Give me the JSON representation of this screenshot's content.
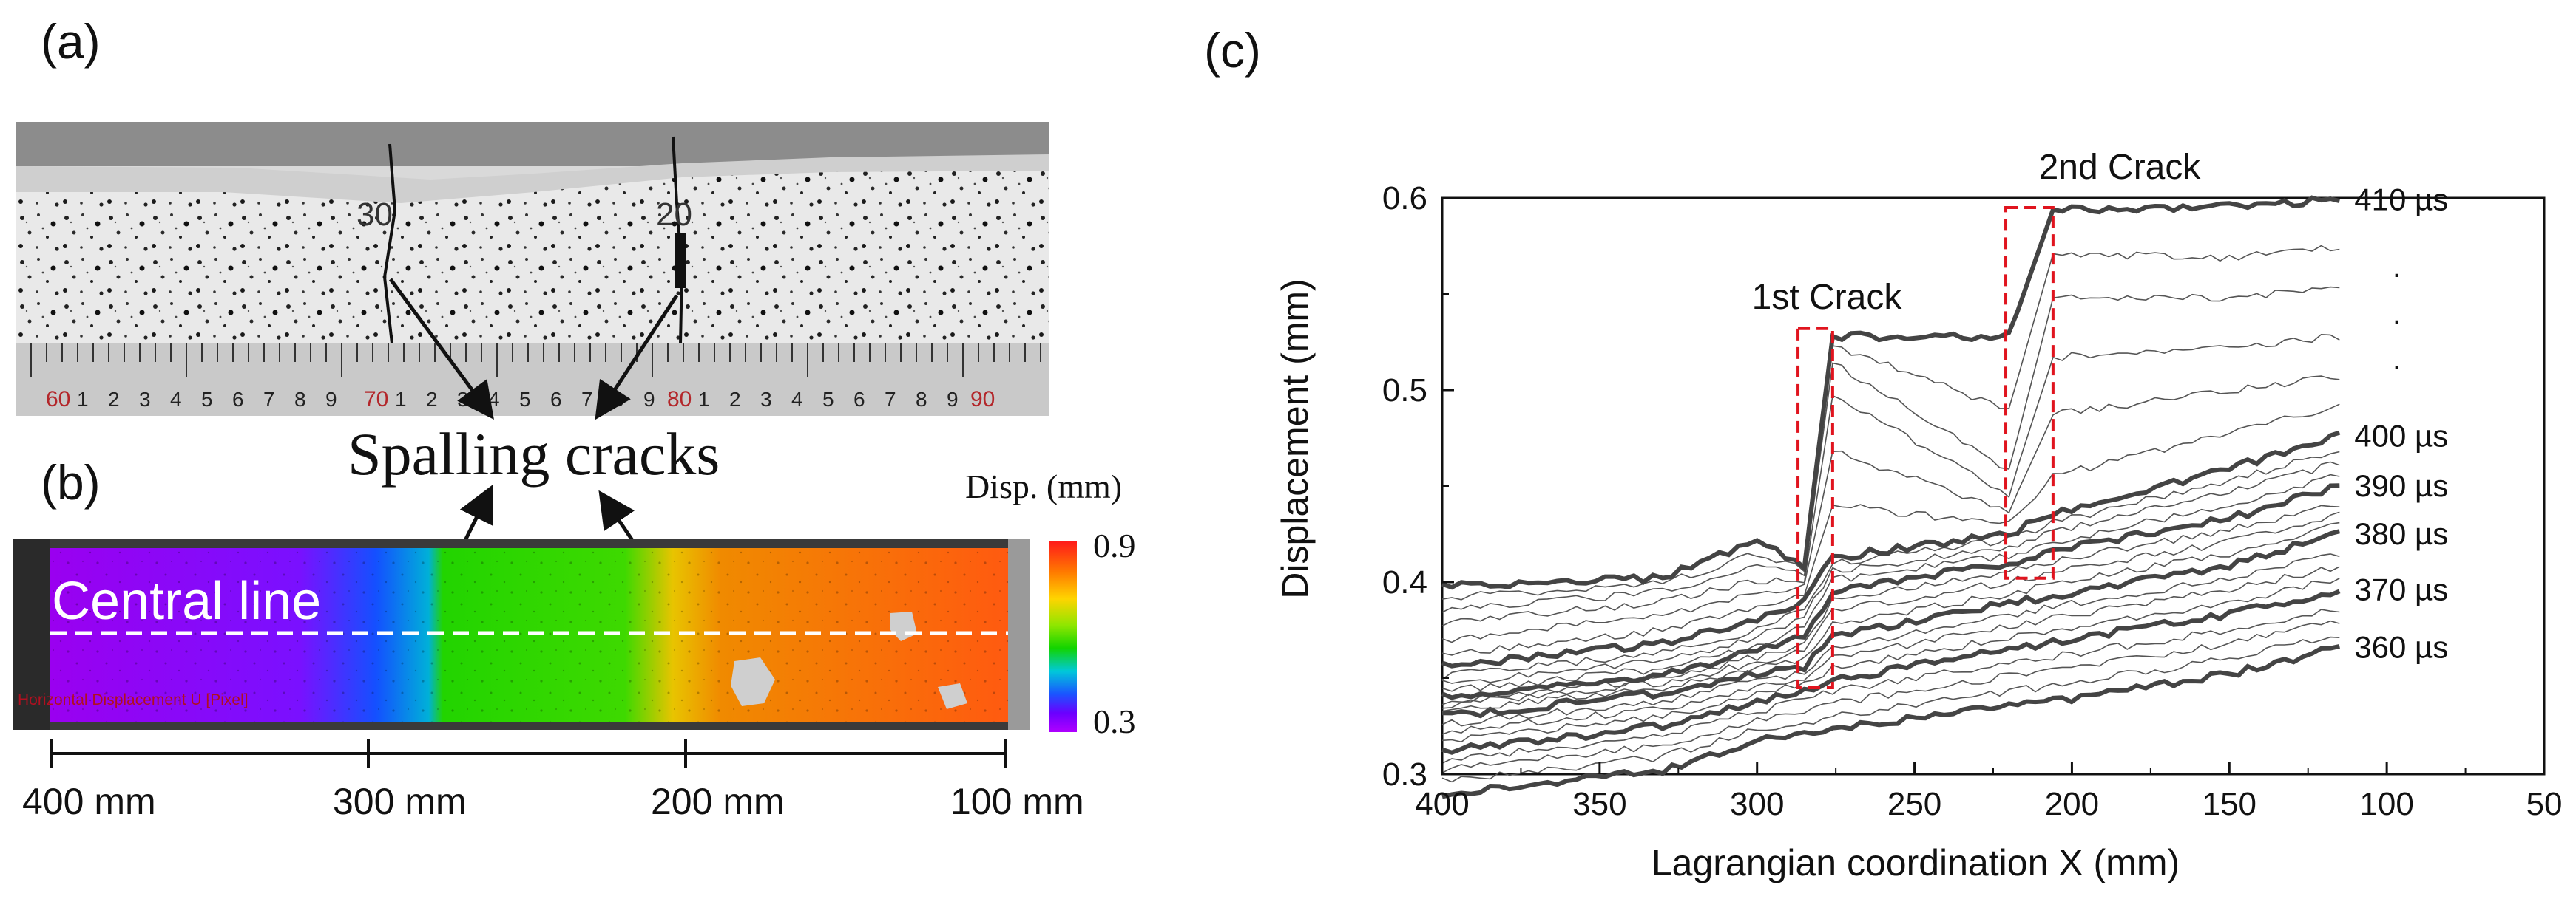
{
  "panel_labels": {
    "a": "(a)",
    "b": "(b)",
    "c": "(c)"
  },
  "panel_a": {
    "ruler_big": [
      "60",
      "70",
      "80",
      "90"
    ],
    "ruler_small": [
      "1",
      "2",
      "3",
      "4",
      "5",
      "6",
      "7",
      "8",
      "9"
    ],
    "specimen_marks": [
      "30",
      "20"
    ]
  },
  "annotation": {
    "spalling": "Spalling cracks"
  },
  "panel_b": {
    "central_line": "Central line",
    "overlay_caption": "Horizontal Displacement U [Pixel]",
    "colorbar_title": "Disp. (mm)",
    "colorbar_max": "0.9",
    "colorbar_min": "0.3",
    "colors": {
      "low": "#b000ff",
      "mid": "#12d400",
      "high": "#ff7a00"
    }
  },
  "scale_labels": [
    "400 mm",
    "300 mm",
    "200 mm",
    "100 mm"
  ],
  "chart_data": {
    "type": "line",
    "title": "",
    "xlabel": "Lagrangian coordination X (mm)",
    "ylabel": "Displacement (mm)",
    "xlim": [
      400,
      50
    ],
    "ylim": [
      0.3,
      0.6
    ],
    "xticks": [
      400,
      350,
      300,
      250,
      200,
      150,
      100,
      50
    ],
    "yticks": [
      0.3,
      0.4,
      0.5,
      0.6
    ],
    "annotations": [
      "1st Crack",
      "2nd Crack"
    ],
    "ellipsis": [
      ".",
      ".",
      "."
    ],
    "crack_boxes": [
      {
        "x": [
          287,
          276
        ],
        "y": [
          0.345,
          0.532
        ]
      },
      {
        "x": [
          221,
          206
        ],
        "y": [
          0.402,
          0.595
        ]
      }
    ],
    "series": [
      {
        "name": "360 µs",
        "bold": true,
        "points": [
          [
            400,
            0.29
          ],
          [
            330,
            0.302
          ],
          [
            300,
            0.318
          ],
          [
            285,
            0.321
          ],
          [
            276,
            0.324
          ],
          [
            220,
            0.335
          ],
          [
            206,
            0.338
          ],
          [
            150,
            0.352
          ],
          [
            115,
            0.366
          ]
        ]
      },
      {
        "name": "",
        "bold": false,
        "points": [
          [
            400,
            0.296
          ],
          [
            330,
            0.309
          ],
          [
            300,
            0.323
          ],
          [
            285,
            0.327
          ],
          [
            276,
            0.33
          ],
          [
            220,
            0.343
          ],
          [
            206,
            0.346
          ],
          [
            150,
            0.36
          ],
          [
            115,
            0.373
          ]
        ]
      },
      {
        "name": "",
        "bold": false,
        "points": [
          [
            400,
            0.302
          ],
          [
            330,
            0.315
          ],
          [
            300,
            0.328
          ],
          [
            285,
            0.333
          ],
          [
            276,
            0.337
          ],
          [
            220,
            0.351
          ],
          [
            206,
            0.354
          ],
          [
            150,
            0.368
          ],
          [
            115,
            0.38
          ]
        ]
      },
      {
        "name": "",
        "bold": false,
        "points": [
          [
            400,
            0.307
          ],
          [
            330,
            0.32
          ],
          [
            300,
            0.333
          ],
          [
            285,
            0.338
          ],
          [
            276,
            0.343
          ],
          [
            220,
            0.358
          ],
          [
            206,
            0.361
          ],
          [
            150,
            0.375
          ],
          [
            115,
            0.386
          ]
        ]
      },
      {
        "name": "370 µs",
        "bold": true,
        "points": [
          [
            400,
            0.312
          ],
          [
            330,
            0.325
          ],
          [
            300,
            0.338
          ],
          [
            285,
            0.343
          ],
          [
            276,
            0.349
          ],
          [
            220,
            0.365
          ],
          [
            206,
            0.369
          ],
          [
            150,
            0.383
          ],
          [
            115,
            0.396
          ]
        ]
      },
      {
        "name": "",
        "bold": false,
        "points": [
          [
            400,
            0.317
          ],
          [
            330,
            0.33
          ],
          [
            300,
            0.342
          ],
          [
            285,
            0.347
          ],
          [
            276,
            0.355
          ],
          [
            220,
            0.371
          ],
          [
            206,
            0.375
          ],
          [
            150,
            0.389
          ],
          [
            115,
            0.402
          ]
        ]
      },
      {
        "name": "",
        "bold": false,
        "points": [
          [
            400,
            0.322
          ],
          [
            330,
            0.334
          ],
          [
            300,
            0.346
          ],
          [
            285,
            0.35
          ],
          [
            276,
            0.36
          ],
          [
            220,
            0.377
          ],
          [
            206,
            0.381
          ],
          [
            150,
            0.396
          ],
          [
            115,
            0.408
          ]
        ]
      },
      {
        "name": "",
        "bold": false,
        "points": [
          [
            400,
            0.326
          ],
          [
            330,
            0.338
          ],
          [
            300,
            0.349
          ],
          [
            285,
            0.353
          ],
          [
            276,
            0.366
          ],
          [
            220,
            0.383
          ],
          [
            206,
            0.387
          ],
          [
            150,
            0.402
          ],
          [
            115,
            0.414
          ]
        ]
      },
      {
        "name": "380 µs",
        "bold": true,
        "points": [
          [
            400,
            0.33
          ],
          [
            330,
            0.342
          ],
          [
            300,
            0.352
          ],
          [
            285,
            0.356
          ],
          [
            276,
            0.372
          ],
          [
            220,
            0.389
          ],
          [
            206,
            0.393
          ],
          [
            150,
            0.409
          ],
          [
            115,
            0.425
          ]
        ]
      },
      {
        "name": "",
        "bold": false,
        "points": [
          [
            400,
            0.333
          ],
          [
            330,
            0.345
          ],
          [
            300,
            0.355
          ],
          [
            285,
            0.36
          ],
          [
            276,
            0.378
          ],
          [
            220,
            0.394
          ],
          [
            206,
            0.399
          ],
          [
            150,
            0.415
          ],
          [
            115,
            0.43
          ]
        ]
      },
      {
        "name": "",
        "bold": false,
        "points": [
          [
            400,
            0.336
          ],
          [
            330,
            0.348
          ],
          [
            300,
            0.358
          ],
          [
            285,
            0.364
          ],
          [
            276,
            0.385
          ],
          [
            220,
            0.4
          ],
          [
            206,
            0.405
          ],
          [
            150,
            0.421
          ],
          [
            115,
            0.436
          ]
        ]
      },
      {
        "name": "",
        "bold": false,
        "points": [
          [
            400,
            0.338
          ],
          [
            330,
            0.35
          ],
          [
            300,
            0.361
          ],
          [
            285,
            0.368
          ],
          [
            276,
            0.39
          ],
          [
            220,
            0.405
          ],
          [
            206,
            0.411
          ],
          [
            150,
            0.427
          ],
          [
            115,
            0.441
          ]
        ]
      },
      {
        "name": "390 µs",
        "bold": true,
        "points": [
          [
            400,
            0.34
          ],
          [
            330,
            0.352
          ],
          [
            300,
            0.364
          ],
          [
            285,
            0.372
          ],
          [
            276,
            0.395
          ],
          [
            220,
            0.41
          ],
          [
            206,
            0.416
          ],
          [
            150,
            0.433
          ],
          [
            115,
            0.45
          ]
        ]
      },
      {
        "name": "",
        "bold": false,
        "points": [
          [
            400,
            0.343
          ],
          [
            330,
            0.355
          ],
          [
            300,
            0.367
          ],
          [
            285,
            0.377
          ],
          [
            276,
            0.401
          ],
          [
            220,
            0.414
          ],
          [
            206,
            0.421
          ],
          [
            150,
            0.44
          ],
          [
            115,
            0.456
          ]
        ]
      },
      {
        "name": "",
        "bold": false,
        "points": [
          [
            400,
            0.347
          ],
          [
            330,
            0.359
          ],
          [
            300,
            0.371
          ],
          [
            285,
            0.382
          ],
          [
            276,
            0.406
          ],
          [
            220,
            0.418
          ],
          [
            206,
            0.426
          ],
          [
            150,
            0.447
          ],
          [
            115,
            0.462
          ]
        ]
      },
      {
        "name": "",
        "bold": false,
        "points": [
          [
            400,
            0.351
          ],
          [
            330,
            0.363
          ],
          [
            300,
            0.375
          ],
          [
            285,
            0.386
          ],
          [
            276,
            0.41
          ],
          [
            220,
            0.422
          ],
          [
            206,
            0.431
          ],
          [
            150,
            0.453
          ],
          [
            115,
            0.468
          ]
        ]
      },
      {
        "name": "400 µs",
        "bold": true,
        "points": [
          [
            400,
            0.356
          ],
          [
            330,
            0.368
          ],
          [
            300,
            0.38
          ],
          [
            285,
            0.39
          ],
          [
            276,
            0.413
          ],
          [
            220,
            0.425
          ],
          [
            206,
            0.436
          ],
          [
            150,
            0.459
          ],
          [
            115,
            0.476
          ]
        ]
      },
      {
        "name": "",
        "bold": false,
        "points": [
          [
            400,
            0.362
          ],
          [
            330,
            0.375
          ],
          [
            300,
            0.387
          ],
          [
            285,
            0.394
          ],
          [
            276,
            0.44
          ],
          [
            220,
            0.43
          ],
          [
            206,
            0.455
          ],
          [
            150,
            0.478
          ],
          [
            115,
            0.492
          ]
        ]
      },
      {
        "name": "",
        "bold": false,
        "points": [
          [
            400,
            0.37
          ],
          [
            330,
            0.383
          ],
          [
            300,
            0.394
          ],
          [
            285,
            0.398
          ],
          [
            276,
            0.468
          ],
          [
            220,
            0.437
          ],
          [
            206,
            0.487
          ],
          [
            150,
            0.5
          ],
          [
            115,
            0.507
          ]
        ]
      },
      {
        "name": "",
        "bold": false,
        "points": [
          [
            400,
            0.378
          ],
          [
            330,
            0.39
          ],
          [
            300,
            0.401
          ],
          [
            285,
            0.401
          ],
          [
            276,
            0.497
          ],
          [
            220,
            0.446
          ],
          [
            206,
            0.517
          ],
          [
            150,
            0.522
          ],
          [
            115,
            0.528
          ]
        ]
      },
      {
        "name": "",
        "bold": false,
        "points": [
          [
            400,
            0.385
          ],
          [
            330,
            0.395
          ],
          [
            300,
            0.408
          ],
          [
            285,
            0.404
          ],
          [
            276,
            0.514
          ],
          [
            220,
            0.458
          ],
          [
            206,
            0.548
          ],
          [
            150,
            0.548
          ],
          [
            115,
            0.553
          ]
        ]
      },
      {
        "name": "",
        "bold": false,
        "points": [
          [
            400,
            0.392
          ],
          [
            330,
            0.399
          ],
          [
            300,
            0.415
          ],
          [
            285,
            0.406
          ],
          [
            276,
            0.523
          ],
          [
            220,
            0.49
          ],
          [
            206,
            0.571
          ],
          [
            150,
            0.569
          ],
          [
            115,
            0.574
          ]
        ]
      },
      {
        "name": "410 µs",
        "bold": true,
        "points": [
          [
            400,
            0.398
          ],
          [
            330,
            0.402
          ],
          [
            300,
            0.422
          ],
          [
            285,
            0.409
          ],
          [
            276,
            0.528
          ],
          [
            220,
            0.528
          ],
          [
            206,
            0.594
          ],
          [
            150,
            0.596
          ],
          [
            115,
            0.599
          ]
        ]
      }
    ]
  }
}
